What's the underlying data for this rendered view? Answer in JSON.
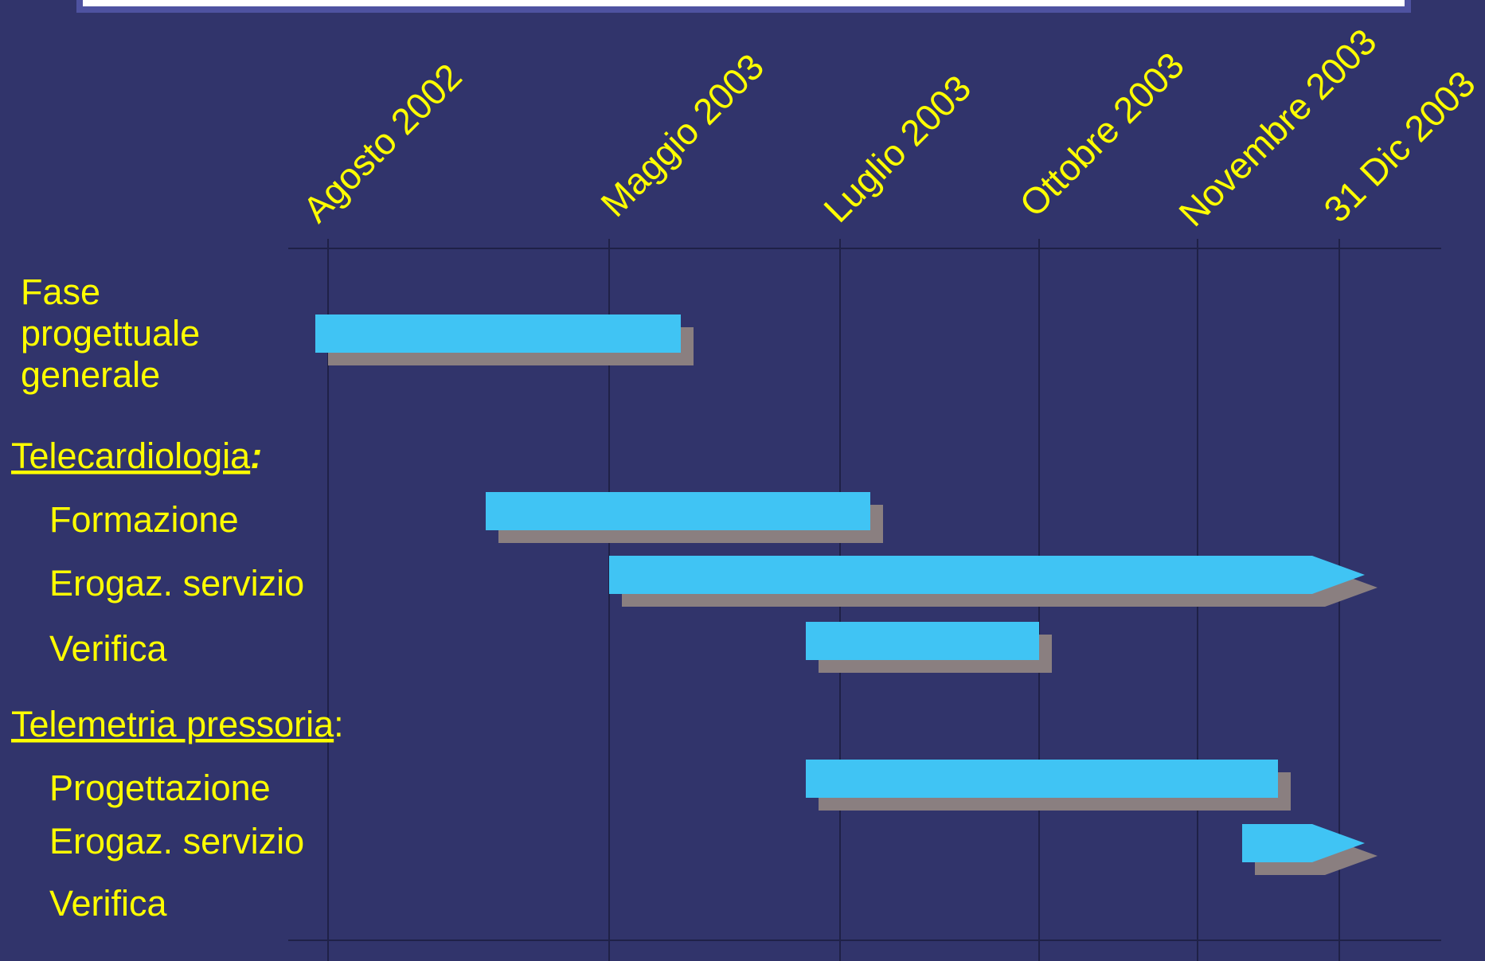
{
  "chart_data": {
    "type": "gantt",
    "columns": [
      "Agosto 2002",
      "Maggio 2003",
      "Luglio 2003",
      "Ottobre 2003",
      "Novembre 2003",
      "31 Dic 2003"
    ],
    "sections": [
      {
        "label": "",
        "tasks": [
          {
            "label": "Fase progettuale generale",
            "label_lines": [
              "Fase",
              "progettuale",
              "generale"
            ],
            "start": "2002-07-20",
            "end": "2003-05-20",
            "continues": false
          }
        ]
      },
      {
        "label": "Telecardiologia",
        "suffix": ":",
        "tasks": [
          {
            "label": "Formazione",
            "start": "2003-01-01",
            "end": "2003-07-15",
            "continues": false
          },
          {
            "label": "Erogaz. servizio",
            "start": "2003-05-01",
            "end": "2003-12-31",
            "continues": true
          },
          {
            "label": "Verifica",
            "start": "2003-06-22",
            "end": "2003-10-01",
            "continues": false
          }
        ]
      },
      {
        "label": "Telemetria pressoria",
        "suffix": ":",
        "tasks": [
          {
            "label": "Progettazione",
            "start": "2003-06-22",
            "end": "2003-12-05",
            "continues": false
          },
          {
            "label": "Erogaz. servizio",
            "start": "2003-11-20",
            "end": "2003-12-31",
            "continues": true
          },
          {
            "label": "Verifica",
            "start": null,
            "end": null,
            "continues": false
          }
        ]
      }
    ],
    "colors": {
      "background": "#31346b",
      "bar": "#40c4f4",
      "shadow": "#8a7f80",
      "text": "#ffff00",
      "grid": "#1f2147"
    }
  }
}
